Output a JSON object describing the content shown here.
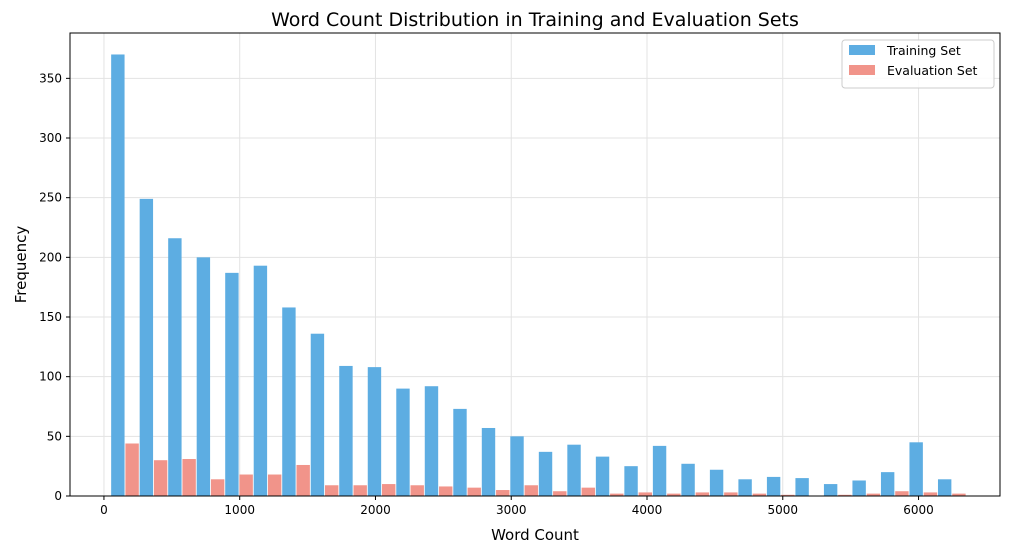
{
  "chart_data": {
    "type": "bar",
    "title": "Word Count Distribution in Training and Evaluation Sets",
    "xlabel": "Word Count",
    "ylabel": "Frequency",
    "xlim": [
      -250,
      6600
    ],
    "ylim": [
      0,
      388
    ],
    "xticks": [
      0,
      1000,
      2000,
      3000,
      4000,
      5000,
      6000
    ],
    "yticks": [
      0,
      50,
      100,
      150,
      200,
      250,
      300,
      350
    ],
    "grid": true,
    "legend_position": "top-right",
    "bin_width": 210,
    "bin_starts": [
      50,
      260,
      470,
      680,
      890,
      1100,
      1310,
      1520,
      1730,
      1940,
      2150,
      2360,
      2570,
      2780,
      2990,
      3200,
      3410,
      3620,
      3830,
      4040,
      4250,
      4460,
      4670,
      4880,
      5090,
      5300,
      5510,
      5720,
      5930,
      6140
    ],
    "series": [
      {
        "name": "Training Set",
        "color": "#5DADE2",
        "values": [
          370,
          249,
          216,
          200,
          187,
          193,
          158,
          136,
          109,
          108,
          90,
          92,
          73,
          57,
          50,
          37,
          43,
          33,
          25,
          42,
          27,
          22,
          14,
          16,
          15,
          10,
          13,
          20,
          45,
          14
        ]
      },
      {
        "name": "Evaluation Set",
        "color": "#F1948A",
        "values": [
          44,
          30,
          31,
          14,
          18,
          18,
          26,
          9,
          9,
          10,
          9,
          8,
          7,
          5,
          9,
          4,
          7,
          2,
          3,
          2,
          3,
          3,
          2,
          1,
          0,
          1,
          2,
          4,
          3,
          2
        ]
      }
    ]
  }
}
